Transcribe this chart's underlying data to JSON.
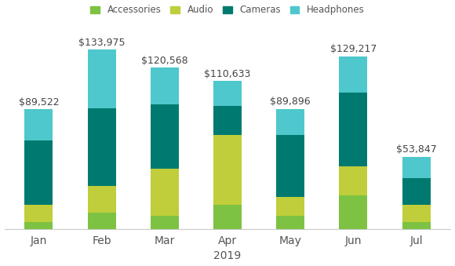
{
  "months": [
    "Jan",
    "Feb",
    "Mar",
    "Apr",
    "May",
    "Jun",
    "Jul"
  ],
  "year_label": "2019",
  "categories": [
    "Accessories",
    "Audio",
    "Cameras",
    "Headphones"
  ],
  "colors": [
    "#7DC242",
    "#BFCE3A",
    "#007A70",
    "#4EC8CC"
  ],
  "values": {
    "Accessories": [
      5000,
      12000,
      10000,
      18000,
      10000,
      25000,
      5000
    ],
    "Audio": [
      13000,
      20000,
      35000,
      52000,
      14000,
      22000,
      13000
    ],
    "Cameras": [
      48000,
      58000,
      48000,
      22000,
      46000,
      55000,
      20000
    ],
    "Headphones": [
      23522,
      43975,
      27568,
      18633,
      19896,
      27217,
      15847
    ]
  },
  "totals": [
    "$89,522",
    "$133,975",
    "$120,568",
    "$110,633",
    "$89,896",
    "$129,217",
    "$53,847"
  ],
  "bar_width": 0.45,
  "figsize": [
    5.8,
    3.39
  ],
  "dpi": 100,
  "bg_color": "#FFFFFF",
  "legend_fontsize": 8.5,
  "tick_fontsize": 10,
  "total_fontsize": 9,
  "xlabel_fontsize": 10,
  "ylim": [
    0,
    150000
  ]
}
